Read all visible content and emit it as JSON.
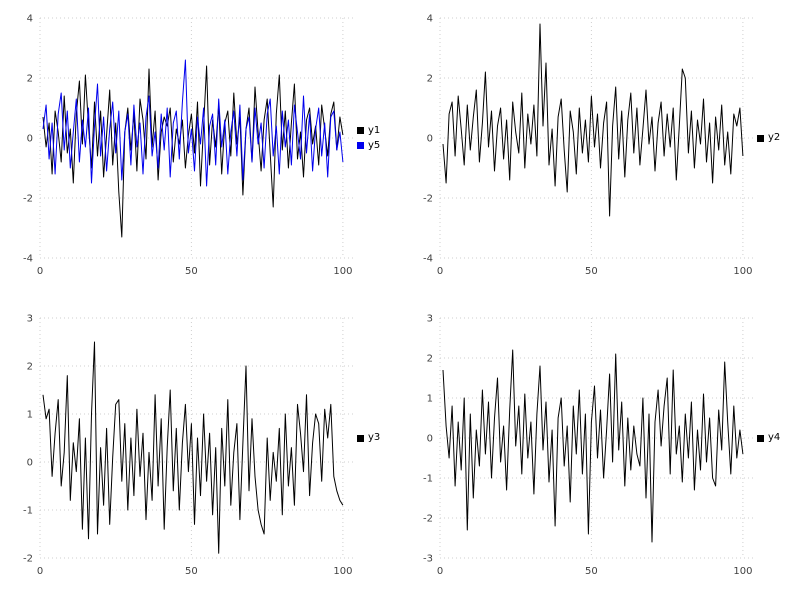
{
  "chart_data": [
    {
      "id": "top-left",
      "type": "line",
      "title": "",
      "xlabel": "",
      "ylabel": "",
      "xlim": [
        0,
        104
      ],
      "ylim": [
        -4,
        4
      ],
      "xticks": [
        0,
        50,
        100
      ],
      "yticks": [
        -4,
        -2,
        0,
        2,
        4
      ],
      "grid": true,
      "legend_position": "right-center-outside",
      "series": [
        {
          "name": "y1",
          "color": "#000000",
          "values": [
            0.7,
            -0.3,
            0.5,
            -1.2,
            0.9,
            0.2,
            -0.8,
            1.4,
            -0.5,
            0.3,
            -1.5,
            0.8,
            1.9,
            -0.2,
            2.1,
            0.4,
            -1.0,
            1.2,
            -0.6,
            0.9,
            -1.3,
            0.1,
            1.6,
            -0.9,
            0.5,
            -1.8,
            -3.3,
            0.2,
            1.0,
            -0.4,
            0.8,
            -1.1,
            1.3,
            0.6,
            -0.7,
            2.3,
            -0.3,
            0.9,
            -1.4,
            0.2,
            0.7,
            0.4,
            1.0,
            -0.8,
            0.3,
            -0.2,
            0.6,
            -1.0,
            0.1,
            0.8,
            -0.5,
            1.2,
            -1.6,
            0.4,
            2.4,
            -0.9,
            0.6,
            -0.3,
            1.1,
            -1.2,
            0.5,
            0.9,
            -0.6,
            1.5,
            -0.2,
            0.7,
            -1.9,
            0.3,
            1.0,
            -0.8,
            1.7,
            0.2,
            -1.1,
            0.6,
            1.3,
            -0.5,
            -2.3,
            0.8,
            2.1,
            -0.4,
            0.9,
            -1.0,
            0.5,
            1.8,
            -0.7,
            0.2,
            -1.3,
            0.6,
            1.0,
            -0.2,
            0.4,
            -0.9,
            1.1,
            0.3,
            -0.6,
            0.8,
            1.2,
            -0.4,
            0.7,
            0.1
          ]
        },
        {
          "name": "y5",
          "color": "#0000ee",
          "values": [
            0.3,
            1.1,
            -0.7,
            0.5,
            -1.2,
            0.8,
            1.5,
            -0.4,
            0.9,
            -1.0,
            0.2,
            1.3,
            -0.8,
            0.6,
            -0.3,
            1.0,
            -1.5,
            0.4,
            1.8,
            -0.6,
            0.7,
            -1.1,
            0.3,
            1.2,
            -0.5,
            0.9,
            -1.4,
            0.2,
            0.8,
            -0.9,
            1.1,
            -0.3,
            0.5,
            -1.2,
            0.7,
            1.4,
            -0.6,
            0.2,
            -1.0,
            0.8,
            -0.4,
            1.0,
            -1.3,
            0.5,
            0.9,
            -0.7,
            1.2,
            2.6,
            -0.5,
            0.3,
            -1.1,
            0.7,
            -0.2,
            1.0,
            -1.6,
            0.4,
            0.8,
            -0.9,
            1.3,
            -0.3,
            0.6,
            -1.2,
            0.2,
            0.9,
            -0.6,
            1.1,
            -1.4,
            0.3,
            0.7,
            -0.8,
            1.0,
            -0.2,
            0.5,
            -1.0,
            0.8,
            1.3,
            -0.6,
            0.4,
            -1.2,
            0.9,
            -0.3,
            0.6,
            -0.9,
            1.1,
            0.2,
            -0.7,
            1.4,
            -0.5,
            0.8,
            -1.1,
            0.3,
            1.0,
            -0.6,
            0.5,
            -1.3,
            0.7,
            0.9,
            -0.4,
            0.2,
            -0.8
          ]
        }
      ]
    },
    {
      "id": "top-right",
      "type": "line",
      "title": "",
      "xlabel": "",
      "ylabel": "",
      "xlim": [
        0,
        104
      ],
      "ylim": [
        -4,
        4
      ],
      "xticks": [
        0,
        50,
        100
      ],
      "yticks": [
        -4,
        -2,
        0,
        2,
        4
      ],
      "grid": true,
      "legend_position": "right-center-outside",
      "series": [
        {
          "name": "y2",
          "color": "#000000",
          "values": [
            -0.2,
            -1.5,
            0.8,
            1.2,
            -0.6,
            1.4,
            0.3,
            -0.9,
            1.1,
            -0.4,
            0.7,
            1.6,
            -0.8,
            0.5,
            2.2,
            -0.3,
            0.9,
            -1.1,
            0.4,
            1.0,
            -0.7,
            0.6,
            -1.4,
            1.2,
            0.2,
            -0.5,
            1.5,
            -1.0,
            0.8,
            -0.2,
            1.1,
            -0.6,
            3.8,
            0.4,
            2.5,
            -0.9,
            0.3,
            -1.6,
            0.7,
            1.3,
            -0.4,
            -1.8,
            0.9,
            0.2,
            -1.2,
            1.0,
            -0.5,
            0.6,
            -0.8,
            1.4,
            -0.3,
            0.8,
            -1.0,
            0.5,
            1.2,
            -2.6,
            0.4,
            1.7,
            -0.7,
            0.9,
            -1.3,
            0.6,
            1.5,
            -0.5,
            1.0,
            -0.9,
            0.3,
            1.6,
            -0.2,
            0.7,
            -1.1,
            0.5,
            1.2,
            -0.6,
            0.8,
            -0.3,
            1.0,
            -1.4,
            0.4,
            2.3,
            2.0,
            -0.5,
            0.9,
            -1.0,
            0.6,
            -0.2,
            1.3,
            -0.8,
            0.5,
            -1.5,
            0.7,
            -0.4,
            1.1,
            -0.9,
            0.2,
            -1.2,
            0.8,
            0.4,
            1.0,
            -0.6
          ]
        }
      ]
    },
    {
      "id": "bottom-left",
      "type": "line",
      "title": "",
      "xlabel": "",
      "ylabel": "",
      "xlim": [
        0,
        104
      ],
      "ylim": [
        -2,
        3
      ],
      "xticks": [
        0,
        50,
        100
      ],
      "yticks": [
        -2,
        -1,
        0,
        1,
        2,
        3
      ],
      "grid": true,
      "legend_position": "right-center-outside",
      "series": [
        {
          "name": "y3",
          "color": "#000000",
          "values": [
            1.4,
            0.9,
            1.1,
            -0.3,
            0.6,
            1.3,
            -0.5,
            0.2,
            1.8,
            -0.8,
            0.4,
            -0.2,
            0.9,
            -1.4,
            0.5,
            -1.6,
            1.0,
            2.5,
            -1.5,
            0.3,
            -0.9,
            0.7,
            -1.3,
            0.1,
            1.2,
            1.3,
            -0.4,
            0.8,
            -1.0,
            0.5,
            -0.7,
            1.1,
            -0.3,
            0.6,
            -1.2,
            0.2,
            -0.8,
            1.4,
            -0.5,
            0.9,
            -1.4,
            0.3,
            1.5,
            -0.6,
            0.7,
            -1.0,
            0.4,
            1.2,
            -0.2,
            0.8,
            -1.3,
            0.5,
            -0.7,
            1.0,
            -0.4,
            0.6,
            -1.1,
            0.3,
            -1.9,
            0.7,
            -0.5,
            1.3,
            -0.9,
            0.2,
            0.8,
            -1.2,
            0.4,
            2.0,
            -0.6,
            0.9,
            -0.3,
            -1.0,
            -1.3,
            -1.5,
            0.5,
            -0.8,
            0.2,
            -0.4,
            0.7,
            -1.1,
            1.0,
            -0.5,
            0.3,
            -0.9,
            1.2,
            0.6,
            -0.2,
            1.4,
            -0.7,
            0.4,
            1.0,
            0.8,
            -0.4,
            1.1,
            0.5,
            1.2,
            -0.3,
            -0.6,
            -0.8,
            -0.9
          ]
        }
      ]
    },
    {
      "id": "bottom-right",
      "type": "line",
      "title": "",
      "xlabel": "",
      "ylabel": "",
      "xlim": [
        0,
        104
      ],
      "ylim": [
        -3,
        3
      ],
      "xticks": [
        0,
        50,
        100
      ],
      "yticks": [
        -3,
        -2,
        -1,
        0,
        1,
        2,
        3
      ],
      "grid": true,
      "legend_position": "right-center-outside",
      "series": [
        {
          "name": "y4",
          "color": "#000000",
          "values": [
            1.7,
            0.3,
            -0.5,
            0.8,
            -1.2,
            0.4,
            -0.8,
            1.0,
            -2.3,
            0.6,
            -1.5,
            0.2,
            -0.7,
            1.2,
            -0.4,
            0.9,
            -1.0,
            0.5,
            1.5,
            -0.6,
            0.3,
            -1.3,
            0.7,
            2.2,
            -0.2,
            0.8,
            -0.9,
            1.1,
            -0.5,
            0.4,
            -1.4,
            0.6,
            1.8,
            -0.3,
            0.9,
            -1.1,
            0.2,
            -2.2,
            0.5,
            1.0,
            -0.7,
            0.3,
            -1.6,
            0.8,
            -0.4,
            1.2,
            -0.9,
            0.6,
            -2.4,
            0.4,
            1.3,
            -0.5,
            0.7,
            -1.0,
            0.2,
            1.6,
            -0.6,
            2.1,
            -0.3,
            0.9,
            -1.2,
            0.5,
            -0.8,
            0.3,
            -0.4,
            -0.7,
            1.0,
            -1.5,
            0.6,
            -2.6,
            0.4,
            1.2,
            -0.2,
            0.8,
            1.5,
            -0.9,
            1.7,
            -0.4,
            0.3,
            -1.1,
            0.6,
            -0.5,
            0.9,
            -1.3,
            0.2,
            -0.8,
            1.1,
            -0.6,
            0.5,
            -1.0,
            -1.2,
            0.7,
            -0.3,
            1.9,
            0.4,
            -0.9,
            0.8,
            -0.5,
            0.2,
            -0.4
          ]
        }
      ]
    }
  ],
  "style": {
    "grid_color": "#cfcfcf",
    "tick_label_color": "#404040",
    "background": "#ffffff"
  }
}
